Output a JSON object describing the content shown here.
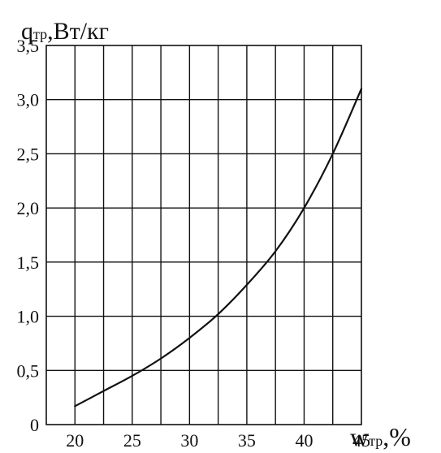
{
  "chart_data": {
    "type": "line",
    "title": "",
    "ylabel": {
      "symbol": "q",
      "subscript": "тр",
      "unit": ",Вт/кг"
    },
    "xlabel": {
      "symbol": "w",
      "subscript": "тр",
      "unit": ",%"
    },
    "xlim": [
      17.5,
      45
    ],
    "ylim": [
      0,
      3.5
    ],
    "x_ticks": [
      {
        "value": 20,
        "label": "20"
      },
      {
        "value": 25,
        "label": "25"
      },
      {
        "value": 30,
        "label": "30"
      },
      {
        "value": 35,
        "label": "35"
      },
      {
        "value": 40,
        "label": "40"
      },
      {
        "value": 45,
        "label": "45"
      }
    ],
    "y_ticks": [
      {
        "value": 0,
        "label": "0"
      },
      {
        "value": 0.5,
        "label": "0,5"
      },
      {
        "value": 1.0,
        "label": "1,0"
      },
      {
        "value": 1.5,
        "label": "1,5"
      },
      {
        "value": 2.0,
        "label": "2,0"
      },
      {
        "value": 2.5,
        "label": "2,5"
      },
      {
        "value": 3.0,
        "label": "3,0"
      },
      {
        "value": 3.5,
        "label": "3,5"
      }
    ],
    "vertical_grid_step": 2.5,
    "grid": true,
    "series": [
      {
        "color": "#111111",
        "x": [
          20,
          22.5,
          25,
          27.5,
          30,
          32.5,
          35,
          37.5,
          40,
          42.5,
          45
        ],
        "y": [
          0.17,
          0.31,
          0.45,
          0.61,
          0.8,
          1.02,
          1.29,
          1.6,
          2.0,
          2.5,
          3.1
        ]
      }
    ]
  }
}
